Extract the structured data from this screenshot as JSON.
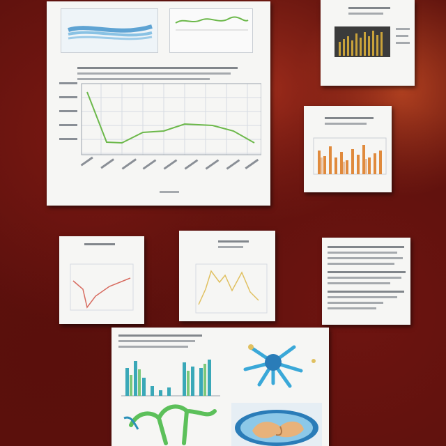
{
  "scene": {
    "background_color": "#5c110d",
    "paper_color": "#f6f6f4"
  },
  "cards": [
    {
      "id": "large-line-chart-card"
    },
    {
      "id": "bar-chart-card-top-right"
    },
    {
      "id": "orange-bar-chart-card"
    },
    {
      "id": "dip-line-chart-card"
    },
    {
      "id": "yellow-line-chart-card"
    },
    {
      "id": "text-document-card"
    },
    {
      "id": "bars-and-images-card"
    }
  ],
  "colors": {
    "green_line": "#6cb84a",
    "blue_band": "#3a8ec9",
    "red_line": "#d76a5e",
    "yellow_line": "#e0c060",
    "orange_bar": "#e08a3c",
    "dark_chart_bg": "#3b3b3b",
    "gold_bar": "#c9a23a",
    "teal_bar": "#3aa8b8",
    "green_bar": "#7cc87a"
  }
}
